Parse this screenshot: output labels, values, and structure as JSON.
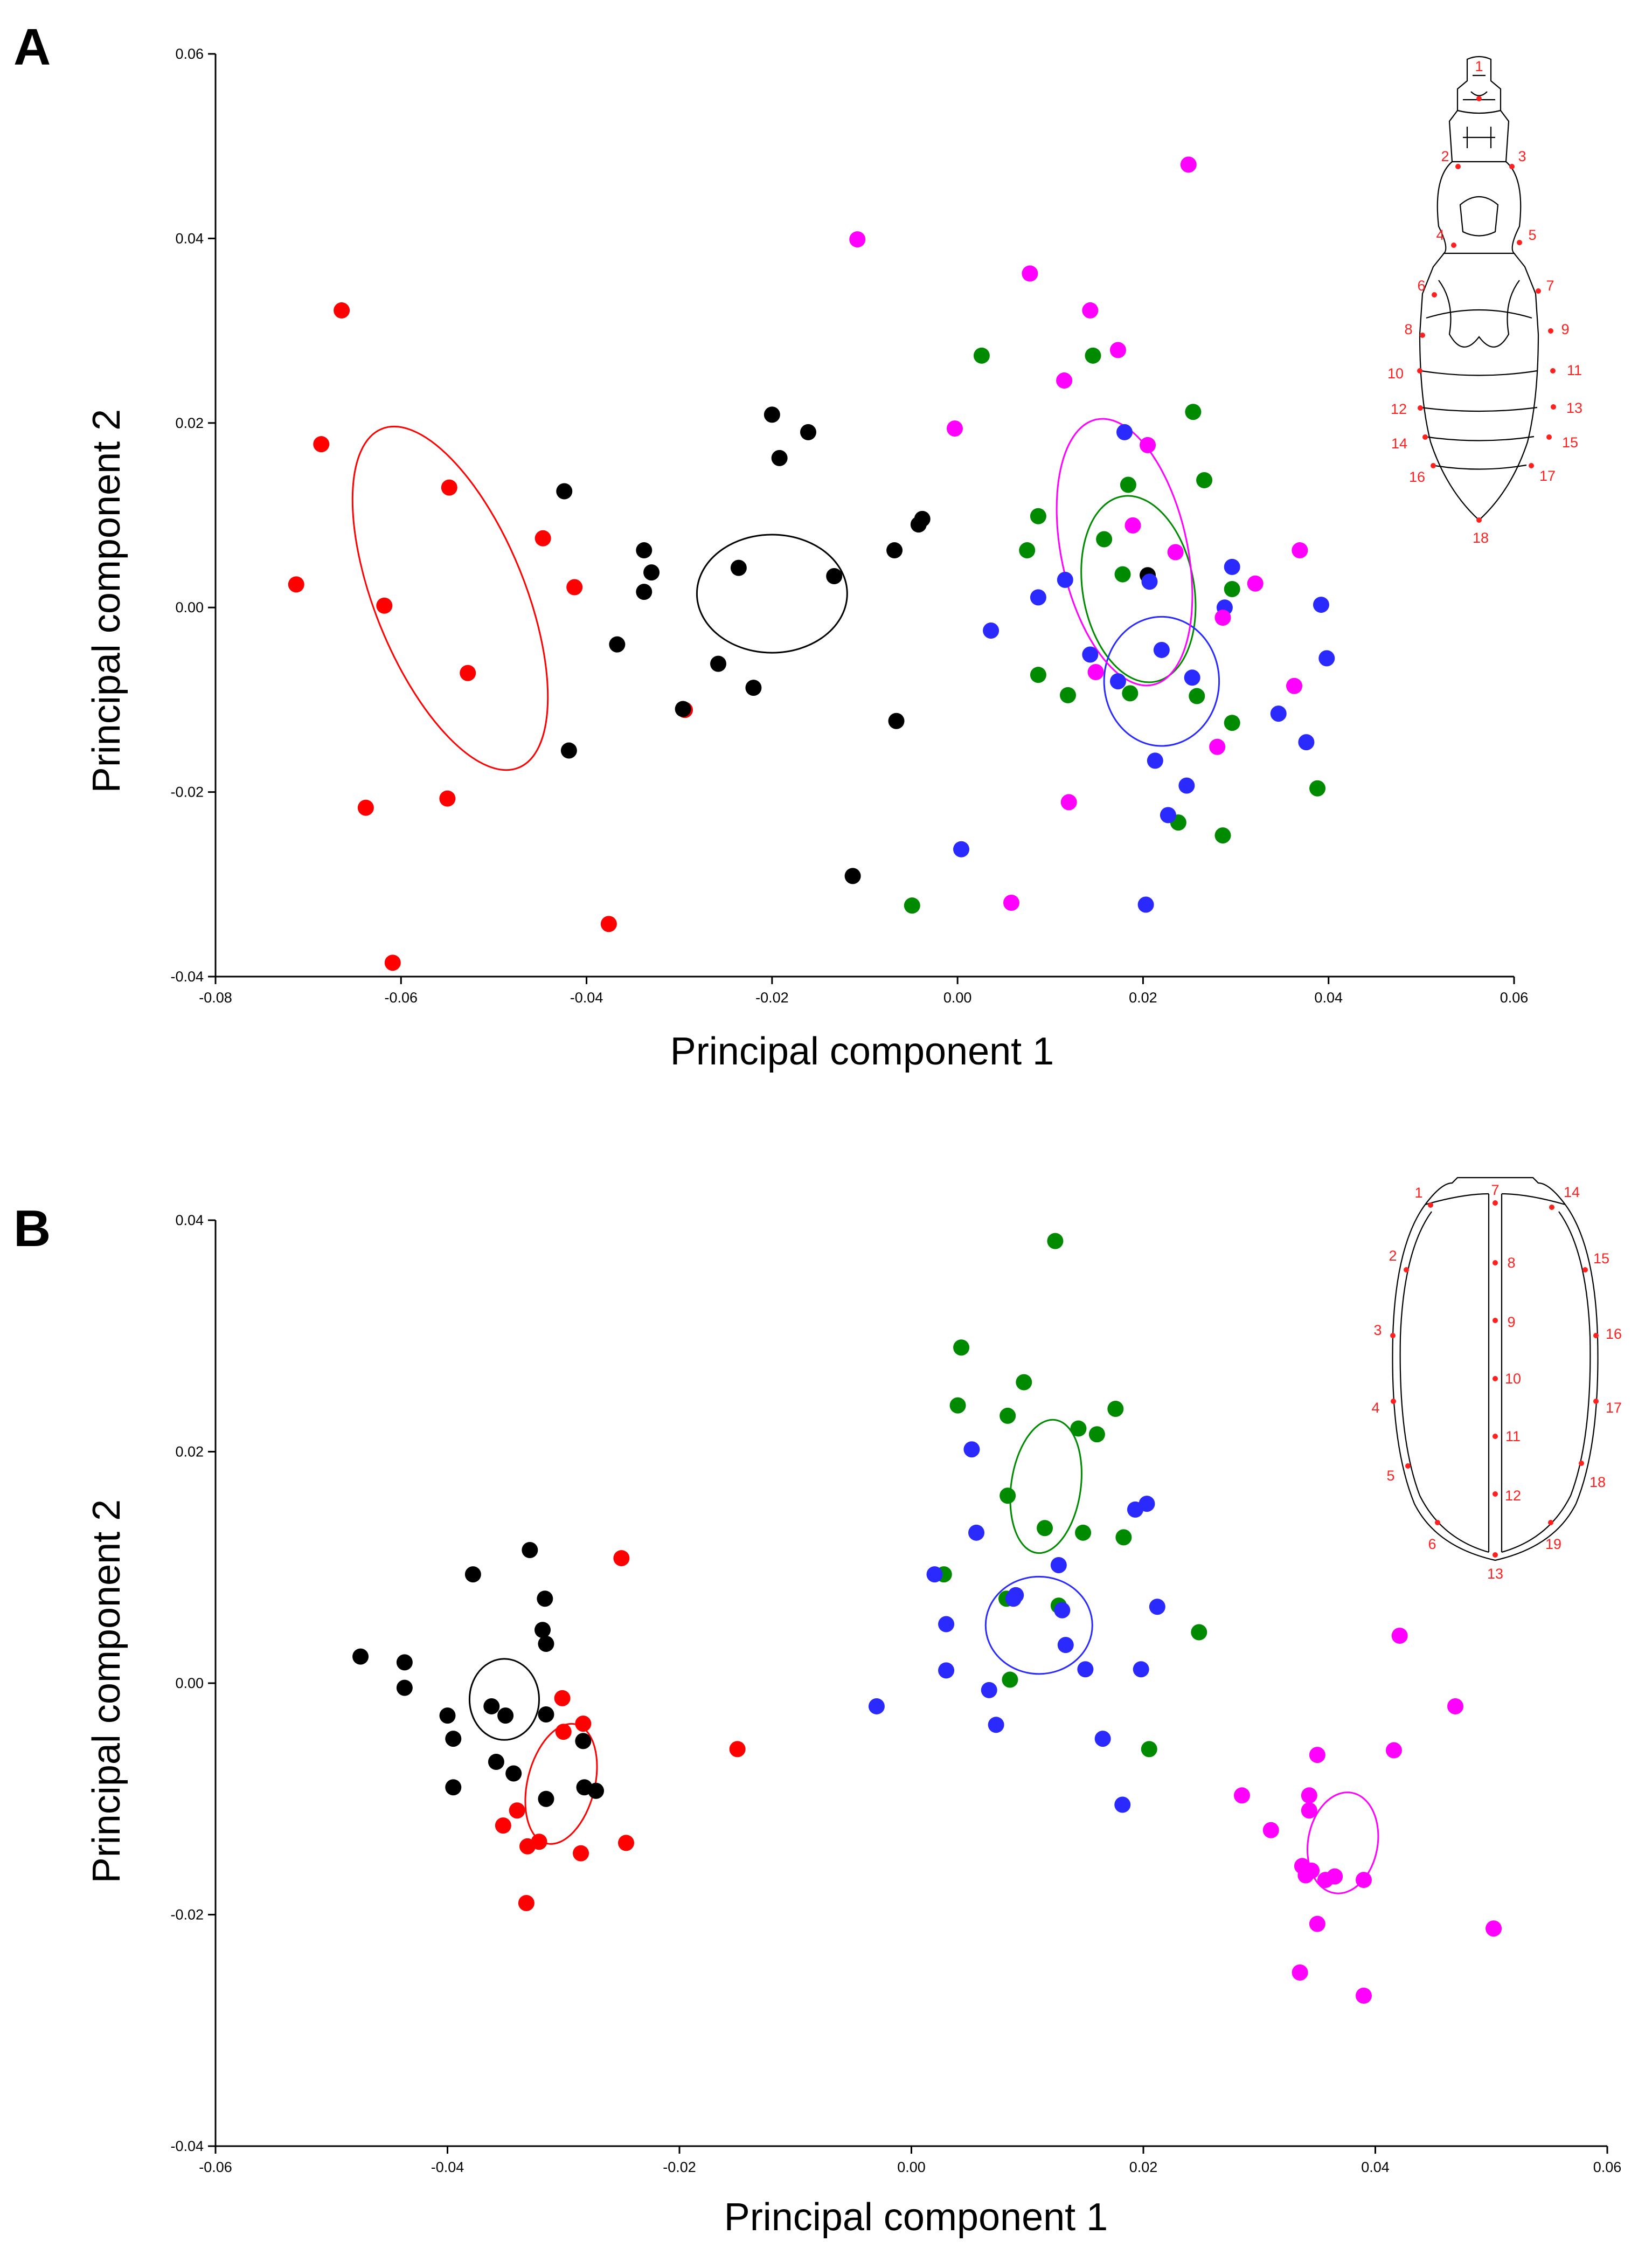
{
  "colors": {
    "red": "#ff0000",
    "black": "#000000",
    "green": "#008a00",
    "blue": "#2a2aff",
    "magenta": "#ff00ff",
    "landmark": "#ff2020"
  },
  "chart_data": [
    {
      "type": "scatter",
      "panel_label": "A",
      "xlabel": "Principal component 1",
      "ylabel": "Principal component 2",
      "xlim": [
        -0.08,
        0.06
      ],
      "ylim": [
        -0.04,
        0.06
      ],
      "xticks": [
        -0.08,
        -0.06,
        -0.04,
        -0.02,
        0.0,
        0.02,
        0.04,
        0.06
      ],
      "yticks": [
        -0.04,
        -0.02,
        0.0,
        0.02,
        0.04,
        0.06
      ],
      "xtick_labels": [
        "-0.08",
        "-0.06",
        "-0.04",
        "-0.02",
        "0.00",
        "0.02",
        "0.04",
        "0.06"
      ],
      "ytick_labels": [
        "-0.04",
        "-0.02",
        "0.00",
        "0.02",
        "0.04",
        "0.06"
      ],
      "grid": false,
      "inset": "pronotum-abdomen outline with 18 landmarks",
      "landmark_labels": [
        "1",
        "2",
        "3",
        "4",
        "5",
        "6",
        "7",
        "8",
        "9",
        "10",
        "11",
        "12",
        "13",
        "14",
        "15",
        "16",
        "17",
        "18"
      ],
      "series": [
        {
          "name": "red",
          "color": "red",
          "points": [
            [
              -0.0713,
              0.0025
            ],
            [
              -0.0686,
              0.0177
            ],
            [
              -0.0664,
              0.0322
            ],
            [
              -0.0618,
              0.0002
            ],
            [
              -0.0638,
              -0.0217
            ],
            [
              -0.0609,
              -0.0385
            ],
            [
              -0.0548,
              0.013
            ],
            [
              -0.0528,
              -0.0071
            ],
            [
              -0.055,
              -0.0207
            ],
            [
              -0.0447,
              0.0075
            ],
            [
              -0.0413,
              0.0022
            ],
            [
              -0.0376,
              -0.0343
            ],
            [
              -0.0294,
              -0.0111
            ]
          ],
          "ellipse": {
            "cx": -0.0547,
            "cy": 0.001,
            "rx": 0.0081,
            "ry": 0.0198,
            "angle_deg": -22
          }
        },
        {
          "name": "black",
          "color": "black",
          "points": [
            [
              -0.0424,
              0.0126
            ],
            [
              -0.0419,
              -0.0155
            ],
            [
              -0.0367,
              -0.004
            ],
            [
              -0.0338,
              0.0062
            ],
            [
              -0.0338,
              0.0017
            ],
            [
              -0.033,
              0.0038
            ],
            [
              -0.0296,
              -0.011
            ],
            [
              -0.0258,
              -0.0061
            ],
            [
              -0.0236,
              0.0043
            ],
            [
              -0.022,
              -0.0087
            ],
            [
              -0.02,
              0.0209
            ],
            [
              -0.0192,
              0.0162
            ],
            [
              -0.0161,
              0.019
            ],
            [
              -0.0133,
              0.0034
            ],
            [
              -0.0113,
              -0.0291
            ],
            [
              -0.0068,
              0.0062
            ],
            [
              -0.0066,
              -0.0123
            ],
            [
              -0.0042,
              0.009
            ],
            [
              -0.0038,
              0.0096
            ],
            [
              0.0205,
              0.0035
            ]
          ],
          "ellipse": {
            "cx": -0.02,
            "cy": 0.0015,
            "rx": 0.0081,
            "ry": 0.0064,
            "angle_deg": 0
          }
        },
        {
          "name": "green",
          "color": "green",
          "points": [
            [
              0.0026,
              0.0273
            ],
            [
              -0.0049,
              -0.0323
            ],
            [
              0.0075,
              0.0062
            ],
            [
              0.0087,
              0.0099
            ],
            [
              0.0087,
              -0.0073
            ],
            [
              0.0119,
              -0.0095
            ],
            [
              0.0146,
              0.0273
            ],
            [
              0.0158,
              0.0074
            ],
            [
              0.0178,
              0.0036
            ],
            [
              0.0184,
              0.0133
            ],
            [
              0.0186,
              -0.0093
            ],
            [
              0.0238,
              -0.0233
            ],
            [
              0.0254,
              0.0212
            ],
            [
              0.0258,
              -0.0096
            ],
            [
              0.0266,
              0.0138
            ],
            [
              0.0286,
              -0.0247
            ],
            [
              0.0296,
              0.002
            ],
            [
              0.0296,
              -0.0125
            ],
            [
              0.0388,
              -0.0196
            ]
          ],
          "ellipse": {
            "cx": 0.0195,
            "cy": 0.002,
            "rx": 0.006,
            "ry": 0.0102,
            "angle_deg": -10
          }
        },
        {
          "name": "blue",
          "color": "blue",
          "points": [
            [
              0.0004,
              -0.0262
            ],
            [
              0.0036,
              -0.0025
            ],
            [
              0.0087,
              0.0011
            ],
            [
              0.0116,
              0.003
            ],
            [
              0.0143,
              -0.0051
            ],
            [
              0.0173,
              -0.008
            ],
            [
              0.018,
              0.019
            ],
            [
              0.0207,
              0.0028
            ],
            [
              0.0213,
              -0.0166
            ],
            [
              0.022,
              -0.0046
            ],
            [
              0.0227,
              -0.0225
            ],
            [
              0.0247,
              -0.0193
            ],
            [
              0.0253,
              -0.0076
            ],
            [
              0.0288,
              0.0
            ],
            [
              0.0296,
              0.0044
            ],
            [
              0.0346,
              -0.0115
            ],
            [
              0.0376,
              -0.0146
            ],
            [
              0.0392,
              0.0003
            ],
            [
              0.0398,
              -0.0055
            ],
            [
              0.0203,
              -0.0322
            ]
          ],
          "ellipse": {
            "cx": 0.022,
            "cy": -0.008,
            "rx": 0.0062,
            "ry": 0.007,
            "angle_deg": 0
          }
        },
        {
          "name": "magenta",
          "color": "magenta",
          "points": [
            [
              0.0249,
              0.048
            ],
            [
              -0.0108,
              0.0399
            ],
            [
              0.0078,
              0.0362
            ],
            [
              0.0143,
              0.0322
            ],
            [
              0.0173,
              0.0279
            ],
            [
              0.0115,
              0.0246
            ],
            [
              -0.0003,
              0.0194
            ],
            [
              0.0205,
              0.0176
            ],
            [
              0.0189,
              0.0089
            ],
            [
              0.0235,
              0.006
            ],
            [
              0.0321,
              0.0026
            ],
            [
              0.0369,
              0.0062
            ],
            [
              0.0286,
              -0.0011
            ],
            [
              0.012,
              -0.0211
            ],
            [
              0.0149,
              -0.007
            ],
            [
              0.028,
              -0.0151
            ],
            [
              0.0363,
              -0.0085
            ],
            [
              0.0058,
              -0.032
            ]
          ],
          "ellipse": {
            "cx": 0.018,
            "cy": 0.006,
            "rx": 0.0068,
            "ry": 0.0147,
            "angle_deg": -12
          }
        }
      ]
    },
    {
      "type": "scatter",
      "panel_label": "B",
      "xlabel": "Principal component 1",
      "ylabel": "Principal component 2",
      "xlim": [
        -0.06,
        0.06
      ],
      "ylim": [
        -0.04,
        0.04
      ],
      "xticks": [
        -0.06,
        -0.04,
        -0.02,
        0.0,
        0.02,
        0.04,
        0.06
      ],
      "yticks": [
        -0.04,
        -0.02,
        0.0,
        0.02,
        0.04
      ],
      "xtick_labels": [
        "-0.06",
        "-0.04",
        "-0.02",
        "0.00",
        "0.02",
        "0.04",
        "0.06"
      ],
      "ytick_labels": [
        "-0.04",
        "-0.02",
        "0.00",
        "0.02",
        "0.04"
      ],
      "grid": false,
      "inset": "elytra outline with 19 landmarks",
      "landmark_labels": [
        "1",
        "2",
        "3",
        "4",
        "5",
        "6",
        "7",
        "8",
        "9",
        "10",
        "11",
        "12",
        "13",
        "14",
        "15",
        "16",
        "17",
        "18",
        "19"
      ],
      "series": [
        {
          "name": "black",
          "color": "black",
          "points": [
            [
              -0.0475,
              0.0023
            ],
            [
              -0.0437,
              0.0018
            ],
            [
              -0.0437,
              -0.0004
            ],
            [
              -0.04,
              -0.0028
            ],
            [
              -0.0395,
              -0.0048
            ],
            [
              -0.0395,
              -0.009
            ],
            [
              -0.0378,
              0.0094
            ],
            [
              -0.0362,
              -0.002
            ],
            [
              -0.0358,
              -0.0068
            ],
            [
              -0.035,
              -0.0028
            ],
            [
              -0.0343,
              -0.0078
            ],
            [
              -0.0329,
              0.0115
            ],
            [
              -0.0318,
              0.0046
            ],
            [
              -0.0316,
              0.0073
            ],
            [
              -0.0315,
              0.0034
            ],
            [
              -0.0315,
              -0.0027
            ],
            [
              -0.0315,
              -0.01
            ],
            [
              -0.0283,
              -0.005
            ],
            [
              -0.0282,
              -0.009
            ],
            [
              -0.0272,
              -0.0093
            ]
          ],
          "ellipse": {
            "cx": -0.0351,
            "cy": -0.0014,
            "rx": 0.003,
            "ry": 0.0035,
            "angle_deg": 0
          }
        },
        {
          "name": "red",
          "color": "red",
          "points": [
            [
              -0.025,
              0.0108
            ],
            [
              -0.0301,
              -0.0013
            ],
            [
              -0.03,
              -0.0042
            ],
            [
              -0.0283,
              -0.0035
            ],
            [
              -0.0352,
              -0.0123
            ],
            [
              -0.034,
              -0.011
            ],
            [
              -0.0331,
              -0.0141
            ],
            [
              -0.0321,
              -0.0137
            ],
            [
              -0.0285,
              -0.0147
            ],
            [
              -0.0246,
              -0.0138
            ],
            [
              -0.0332,
              -0.019
            ],
            [
              -0.015,
              -0.0057
            ]
          ],
          "ellipse": {
            "cx": -0.0302,
            "cy": -0.0087,
            "rx": 0.0029,
            "ry": 0.0053,
            "angle_deg": 14
          }
        },
        {
          "name": "green",
          "color": "green",
          "points": [
            [
              0.0124,
              0.0382
            ],
            [
              0.0043,
              0.029
            ],
            [
              0.0097,
              0.026
            ],
            [
              0.004,
              0.024
            ],
            [
              0.0083,
              0.0231
            ],
            [
              0.0144,
              0.022
            ],
            [
              0.016,
              0.0215
            ],
            [
              0.0176,
              0.0237
            ],
            [
              0.0083,
              0.0162
            ],
            [
              0.0115,
              0.0134
            ],
            [
              0.0148,
              0.013
            ],
            [
              0.0183,
              0.0126
            ],
            [
              0.0028,
              0.0094
            ],
            [
              0.0082,
              0.0073
            ],
            [
              0.0127,
              0.0067
            ],
            [
              0.0085,
              0.0003
            ],
            [
              0.0205,
              -0.0057
            ],
            [
              0.0248,
              0.0044
            ]
          ],
          "ellipse": {
            "cx": 0.0116,
            "cy": 0.017,
            "rx": 0.003,
            "ry": 0.0058,
            "angle_deg": 8
          }
        },
        {
          "name": "blue",
          "color": "blue",
          "points": [
            [
              -0.003,
              -0.002
            ],
            [
              0.002,
              0.0094
            ],
            [
              0.003,
              0.0051
            ],
            [
              0.003,
              0.0011
            ],
            [
              0.0052,
              0.0202
            ],
            [
              0.0056,
              0.013
            ],
            [
              0.0067,
              -0.0006
            ],
            [
              0.0073,
              -0.0036
            ],
            [
              0.009,
              0.0076
            ],
            [
              0.0088,
              0.0073
            ],
            [
              0.0127,
              0.0102
            ],
            [
              0.013,
              0.0063
            ],
            [
              0.0133,
              0.0033
            ],
            [
              0.015,
              0.0012
            ],
            [
              0.0165,
              -0.0048
            ],
            [
              0.0182,
              -0.0105
            ],
            [
              0.0193,
              0.015
            ],
            [
              0.0198,
              0.0012
            ],
            [
              0.0203,
              0.0155
            ],
            [
              0.0212,
              0.0066
            ]
          ],
          "ellipse": {
            "cx": 0.011,
            "cy": 0.005,
            "rx": 0.0046,
            "ry": 0.0042,
            "angle_deg": 0
          }
        },
        {
          "name": "magenta",
          "color": "magenta",
          "points": [
            [
              0.0421,
              0.0041
            ],
            [
              0.0469,
              -0.002
            ],
            [
              0.0416,
              -0.0058
            ],
            [
              0.035,
              -0.0062
            ],
            [
              0.0285,
              -0.0097
            ],
            [
              0.0343,
              -0.0097
            ],
            [
              0.0343,
              -0.011
            ],
            [
              0.031,
              -0.0127
            ],
            [
              0.0337,
              -0.0158
            ],
            [
              0.034,
              -0.0166
            ],
            [
              0.0345,
              -0.0162
            ],
            [
              0.0357,
              -0.017
            ],
            [
              0.0365,
              -0.0167
            ],
            [
              0.039,
              -0.017
            ],
            [
              0.035,
              -0.0208
            ],
            [
              0.0335,
              -0.025
            ],
            [
              0.039,
              -0.027
            ],
            [
              0.0502,
              -0.0212
            ]
          ],
          "ellipse": {
            "cx": 0.0372,
            "cy": -0.0138,
            "rx": 0.003,
            "ry": 0.0044,
            "angle_deg": 10
          }
        }
      ]
    }
  ]
}
